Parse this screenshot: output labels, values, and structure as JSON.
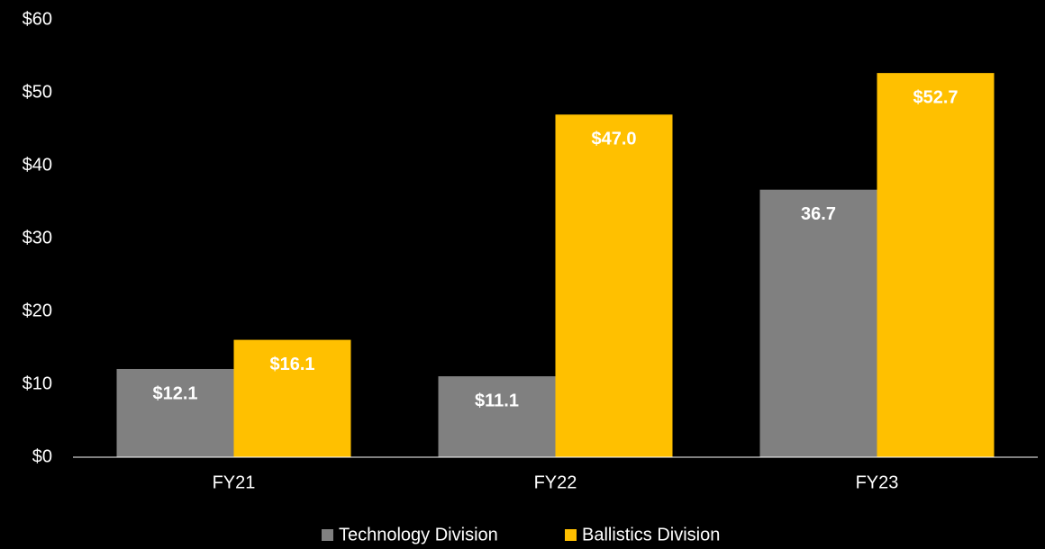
{
  "chart_data": {
    "type": "bar",
    "categories": [
      "FY21",
      "FY22",
      "FY23"
    ],
    "series": [
      {
        "name": "Technology Division",
        "color": "#808080",
        "values": [
          12.1,
          11.1,
          36.7
        ],
        "value_labels": [
          "$12.1",
          "$11.1",
          "36.7"
        ]
      },
      {
        "name": "Ballistics Division",
        "color": "#ffc000",
        "values": [
          16.1,
          47.0,
          52.7
        ],
        "value_labels": [
          "$16.1",
          "$47.0",
          "$52.7"
        ]
      }
    ],
    "ylim": [
      0,
      60
    ],
    "yticks": [
      {
        "value": 0,
        "label": "$0"
      },
      {
        "value": 10,
        "label": "$10"
      },
      {
        "value": 20,
        "label": "$20"
      },
      {
        "value": 30,
        "label": "$30"
      },
      {
        "value": 40,
        "label": "$40"
      },
      {
        "value": 50,
        "label": "$50"
      },
      {
        "value": 60,
        "label": "$60"
      }
    ],
    "grid": false,
    "legend": "bottom"
  }
}
